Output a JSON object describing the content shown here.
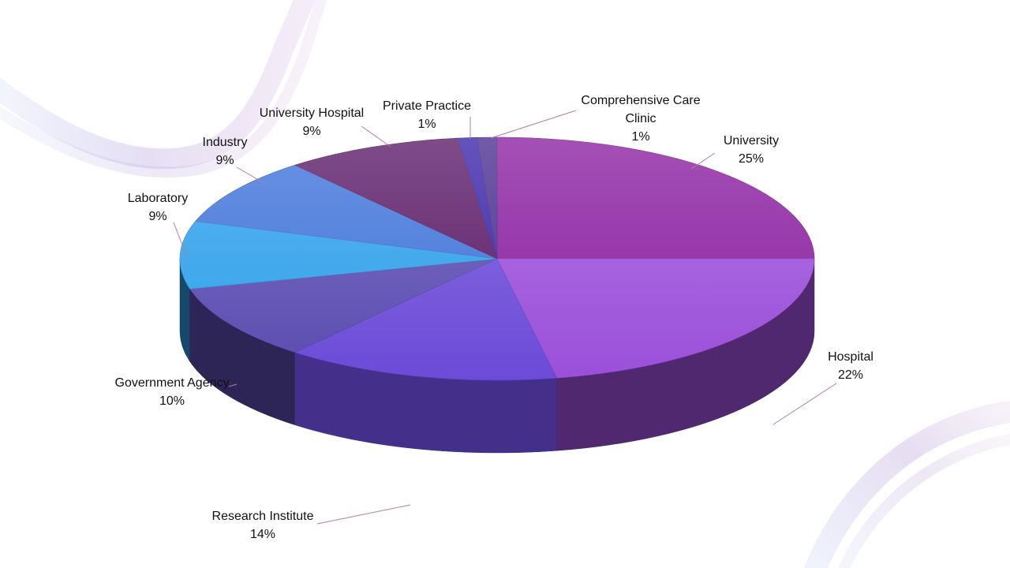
{
  "colors": {
    "background": "#ffffff",
    "decor_purple": "#c9b2da",
    "decor_blue": "#b7c3ee",
    "leader_line": "#b77aa8"
  },
  "chart_data": {
    "type": "pie",
    "title": "",
    "style": "3d-exploded-perspective",
    "legend": "none",
    "data_labels": "outside-with-leader-lines",
    "start_angle_deg": 90,
    "direction": "clockwise",
    "slices": [
      {
        "label": "University",
        "value": 25,
        "value_label": "25%",
        "color": "#8a1fa0"
      },
      {
        "label": "Hospital",
        "value": 22,
        "value_label": "22%",
        "color": "#9b4fda"
      },
      {
        "label": "Research Institute",
        "value": 14,
        "value_label": "14%",
        "color": "#6b4bd8"
      },
      {
        "label": "Government Agency",
        "value": 10,
        "value_label": "10%",
        "color": "#5a4bb0"
      },
      {
        "label": "Laboratory",
        "value": 9,
        "value_label": "9%",
        "color": "#2ea0ea"
      },
      {
        "label": "Industry",
        "value": 9,
        "value_label": "9%",
        "color": "#3f73d9"
      },
      {
        "label": "University Hospital",
        "value": 9,
        "value_label": "9%",
        "color": "#5a1a66"
      },
      {
        "label": "Private Practice",
        "value": 1,
        "value_label": "1%",
        "color": "#3a23a8"
      },
      {
        "label": "Comprehensive Care Clinic",
        "value": 1,
        "value_label": "1%",
        "color": "#4a2e90"
      }
    ]
  }
}
